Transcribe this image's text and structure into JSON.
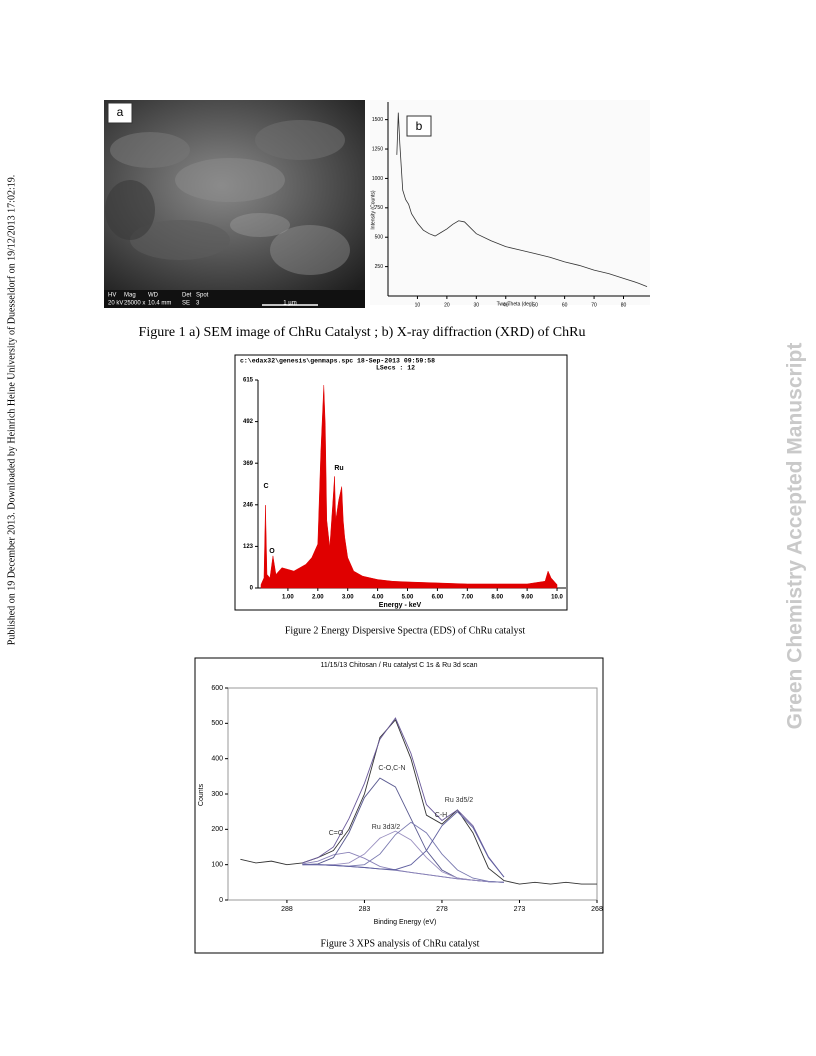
{
  "side_note": "Published on 19 December 2013. Downloaded by Heinrich Heine University of Duesseldorf on 19/12/2013 17:02:19.",
  "watermark": "Green Chemistry Accepted Manuscript",
  "figure1": {
    "panel_a": {
      "label": "a",
      "info_headers": [
        "HV",
        "Mag",
        "WD",
        "Det",
        "Spot"
      ],
      "info_values": [
        "20 kV",
        "25000 x",
        "10.4 mm",
        "SE",
        "3"
      ],
      "scale_bar": "1 µm"
    },
    "panel_b": {
      "label": "b",
      "chart_data": {
        "type": "line",
        "x_label": "Two-Theta (deg)",
        "y_label": "Intensity (Counts)",
        "color": "#333333",
        "x": [
          3,
          3.5,
          4,
          5,
          6,
          7,
          8,
          10,
          12,
          14,
          16,
          18,
          20,
          22,
          24,
          26,
          28,
          30,
          35,
          40,
          45,
          50,
          55,
          60,
          65,
          70,
          75,
          80,
          85,
          88
        ],
        "values": [
          1200,
          1560,
          1300,
          900,
          820,
          780,
          700,
          620,
          560,
          530,
          510,
          540,
          570,
          610,
          640,
          630,
          580,
          530,
          470,
          420,
          390,
          360,
          330,
          290,
          260,
          220,
          190,
          150,
          110,
          80
        ],
        "xlim": [
          0,
          89
        ],
        "xticks": [
          10,
          20,
          30,
          40,
          50,
          60,
          70,
          80
        ],
        "ylim": [
          0,
          1650
        ],
        "yticks": [
          250,
          500,
          750,
          1000,
          1250,
          1500
        ]
      }
    },
    "caption": "Figure 1 a) SEM image of ChRu Catalyst ; b) X-ray diffraction (XRD) of ChRu"
  },
  "figure2": {
    "header": "c:\\edax32\\genesis\\genmaps.spc  18-Sep-2013 09:59:58",
    "subheader": "LSecs : 12",
    "chart_data": {
      "type": "area",
      "x_label": "Energy - keV",
      "color": "#e00000",
      "x": [
        0.1,
        0.2,
        0.25,
        0.3,
        0.4,
        0.5,
        0.6,
        0.8,
        1.0,
        1.2,
        1.4,
        1.6,
        1.8,
        2.0,
        2.1,
        2.2,
        2.25,
        2.3,
        2.4,
        2.5,
        2.56,
        2.6,
        2.7,
        2.8,
        2.85,
        2.9,
        3.0,
        3.2,
        3.5,
        4.0,
        4.5,
        5.0,
        6.0,
        7.0,
        8.0,
        9.0,
        9.6,
        9.7,
        9.8,
        10.0
      ],
      "values": [
        10,
        30,
        245,
        40,
        30,
        95,
        40,
        60,
        55,
        50,
        60,
        70,
        90,
        130,
        400,
        600,
        480,
        200,
        120,
        250,
        330,
        200,
        260,
        300,
        200,
        150,
        90,
        50,
        35,
        25,
        20,
        18,
        15,
        12,
        12,
        12,
        20,
        50,
        30,
        10
      ],
      "xlim": [
        0,
        10.3
      ],
      "xticks": [
        {
          "value": 1,
          "label": "1.00"
        },
        {
          "value": 2,
          "label": "2.00"
        },
        {
          "value": 3,
          "label": "3.00"
        },
        {
          "value": 4,
          "label": "4.00"
        },
        {
          "value": 5,
          "label": "5.00"
        },
        {
          "value": 6,
          "label": "6.00"
        },
        {
          "value": 7,
          "label": "7.00"
        },
        {
          "value": 8,
          "label": "8.00"
        },
        {
          "value": 9,
          "label": "9.00"
        },
        {
          "value": 10,
          "label": "10.0"
        }
      ],
      "ylim": [
        0,
        615
      ],
      "yticks": [
        0,
        123,
        246,
        369,
        492,
        615
      ],
      "annotations": [
        "C",
        "O",
        "Ru"
      ]
    },
    "caption": "Figure 2 Energy Dispersive Spectra (EDS) of ChRu catalyst"
  },
  "figure3": {
    "chart_data": {
      "type": "line",
      "title": "11/15/13  Chitosan / Ru catalyst   C 1s & Ru 3d scan",
      "x_label": "Binding Energy (eV)",
      "y_label": "Counts",
      "x": [
        291,
        290,
        289,
        288,
        287,
        286,
        285,
        284,
        283,
        282,
        281,
        280,
        279,
        278,
        277,
        276,
        275,
        274,
        273,
        272,
        271,
        270,
        269,
        268
      ],
      "series": [
        {
          "color": "#333333",
          "values": [
            115,
            105,
            110,
            100,
            105,
            120,
            140,
            200,
            300,
            460,
            510,
            400,
            240,
            215,
            255,
            190,
            90,
            55,
            45,
            50,
            45,
            50,
            45,
            45
          ]
        },
        {
          "color": "#6a5a9a",
          "values": [
            null,
            null,
            null,
            null,
            105,
            120,
            150,
            230,
            330,
            455,
            515,
            415,
            270,
            225,
            255,
            210,
            122,
            65,
            null,
            null,
            null,
            null,
            null,
            null
          ]
        },
        {
          "color": "#7070a8",
          "values": [
            null,
            null,
            null,
            null,
            100,
            100,
            98,
            95,
            92,
            88,
            84,
            78,
            72,
            66,
            60,
            56,
            52,
            50,
            null,
            null,
            null,
            null,
            null,
            null
          ]
        },
        {
          "name": "C=O",
          "color": "#8a82b8",
          "values": [
            null,
            null,
            null,
            null,
            102,
            110,
            128,
            135,
            118,
            95,
            85,
            78,
            72,
            66,
            60,
            56,
            52,
            50,
            null,
            null,
            null,
            null,
            null,
            null
          ]
        },
        {
          "name": "C-O,C-N",
          "color": "#5a5a90",
          "values": [
            null,
            null,
            null,
            null,
            100,
            102,
            120,
            190,
            290,
            345,
            320,
            230,
            140,
            85,
            62,
            56,
            52,
            50,
            null,
            null,
            null,
            null,
            null,
            null
          ]
        },
        {
          "name": "Ru 3d3/2",
          "color": "#9a90c0",
          "values": [
            null,
            null,
            null,
            null,
            100,
            100,
            100,
            105,
            130,
            175,
            195,
            170,
            120,
            80,
            62,
            56,
            52,
            50,
            null,
            null,
            null,
            null,
            null,
            null
          ]
        },
        {
          "name": "C-H",
          "color": "#7a7ab0",
          "values": [
            null,
            null,
            null,
            null,
            100,
            100,
            98,
            96,
            100,
            130,
            185,
            220,
            190,
            130,
            85,
            62,
            53,
            50,
            null,
            null,
            null,
            null,
            null,
            null
          ]
        },
        {
          "name": "Ru 3d5/2",
          "color": "#6060a0",
          "values": [
            null,
            null,
            null,
            null,
            100,
            100,
            98,
            95,
            92,
            88,
            86,
            100,
            140,
            210,
            250,
            205,
            120,
            65,
            null,
            null,
            null,
            null,
            null,
            null
          ]
        }
      ],
      "xlim": [
        291.8,
        268
      ],
      "xticks": [
        288,
        283,
        278,
        273,
        268
      ],
      "ylim": [
        0,
        600
      ],
      "yticks": [
        0,
        100,
        200,
        300,
        400,
        500,
        600
      ]
    },
    "caption": "Figure 3 XPS analysis of ChRu catalyst"
  }
}
